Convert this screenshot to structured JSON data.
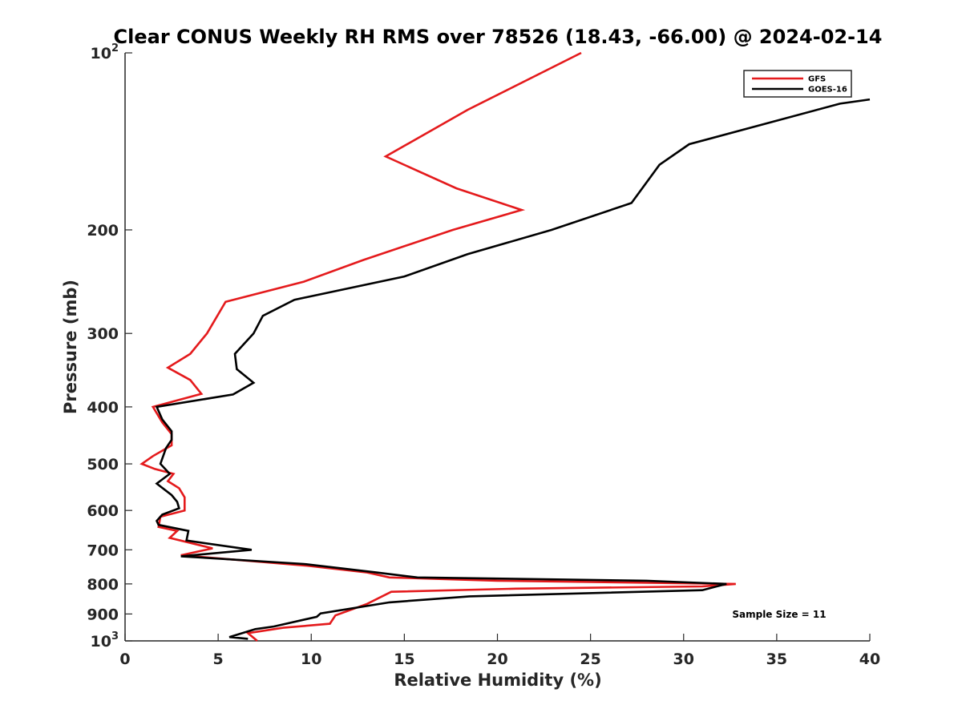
{
  "chart_data": {
    "type": "line",
    "title": "Clear CONUS Weekly RH RMS over 78526 (18.43, -66.00) @ 2024-02-14",
    "xlabel": "Relative Humidity (%)",
    "ylabel": "Pressure (mb)",
    "xlim": [
      0,
      40
    ],
    "ylim": [
      100,
      1000
    ],
    "y_scale": "log",
    "y_reversed": true,
    "x_ticks": [
      0,
      5,
      10,
      15,
      20,
      25,
      30,
      35,
      40
    ],
    "x_tick_labels": [
      "0",
      "5",
      "10",
      "15",
      "20",
      "25",
      "30",
      "35",
      "40"
    ],
    "y_ticks": [
      {
        "value": 100,
        "base": "10",
        "exp": "2"
      },
      {
        "value": 200,
        "base": "200",
        "exp": ""
      },
      {
        "value": 300,
        "base": "300",
        "exp": ""
      },
      {
        "value": 400,
        "base": "400",
        "exp": ""
      },
      {
        "value": 500,
        "base": "500",
        "exp": ""
      },
      {
        "value": 600,
        "base": "600",
        "exp": ""
      },
      {
        "value": 700,
        "base": "700",
        "exp": ""
      },
      {
        "value": 800,
        "base": "800",
        "exp": ""
      },
      {
        "value": 900,
        "base": "900",
        "exp": ""
      },
      {
        "value": 1000,
        "base": "10",
        "exp": "3"
      }
    ],
    "grid": false,
    "legend_position": "top-right",
    "annotation": "Sample Size = 11",
    "series": [
      {
        "name": "GFS",
        "color": "#e41a1c",
        "points": [
          [
            24.5,
            100
          ],
          [
            18.4,
            125
          ],
          [
            14.0,
            150
          ],
          [
            17.8,
            170
          ],
          [
            21.3,
            185
          ],
          [
            17.6,
            200
          ],
          [
            12.8,
            225
          ],
          [
            9.6,
            245
          ],
          [
            5.4,
            265
          ],
          [
            4.4,
            300
          ],
          [
            3.5,
            325
          ],
          [
            2.3,
            343
          ],
          [
            3.5,
            360
          ],
          [
            4.1,
            380
          ],
          [
            1.5,
            400
          ],
          [
            2.0,
            425
          ],
          [
            2.5,
            445
          ],
          [
            2.5,
            465
          ],
          [
            1.5,
            485
          ],
          [
            0.9,
            500
          ],
          [
            1.6,
            510
          ],
          [
            2.6,
            520
          ],
          [
            2.3,
            535
          ],
          [
            2.9,
            550
          ],
          [
            3.2,
            570
          ],
          [
            3.2,
            600
          ],
          [
            1.9,
            615
          ],
          [
            1.8,
            640
          ],
          [
            2.8,
            650
          ],
          [
            2.4,
            668
          ],
          [
            4.7,
            696
          ],
          [
            3.0,
            715
          ],
          [
            9.8,
            745
          ],
          [
            13.0,
            765
          ],
          [
            14.2,
            780
          ],
          [
            20.0,
            790
          ],
          [
            32.8,
            800
          ],
          [
            31.0,
            808
          ],
          [
            21.0,
            815
          ],
          [
            14.3,
            825
          ],
          [
            13.0,
            865
          ],
          [
            11.3,
            905
          ],
          [
            11.0,
            935
          ],
          [
            8.5,
            950
          ],
          [
            6.6,
            970
          ],
          [
            7.1,
            1000
          ]
        ]
      },
      {
        "name": "GOES-16",
        "color": "#000000",
        "points": [
          [
            40.0,
            120
          ],
          [
            38.4,
            122
          ],
          [
            30.3,
            143
          ],
          [
            28.7,
            155
          ],
          [
            27.2,
            180
          ],
          [
            22.9,
            200
          ],
          [
            18.4,
            220
          ],
          [
            15.0,
            240
          ],
          [
            9.1,
            263
          ],
          [
            7.4,
            280
          ],
          [
            6.9,
            300
          ],
          [
            5.9,
            325
          ],
          [
            6.0,
            345
          ],
          [
            6.9,
            364
          ],
          [
            5.8,
            381
          ],
          [
            1.7,
            400
          ],
          [
            2.0,
            420
          ],
          [
            2.5,
            440
          ],
          [
            2.5,
            455
          ],
          [
            2.2,
            470
          ],
          [
            1.9,
            500
          ],
          [
            2.4,
            520
          ],
          [
            1.7,
            540
          ],
          [
            2.5,
            565
          ],
          [
            2.8,
            580
          ],
          [
            2.9,
            595
          ],
          [
            2.0,
            610
          ],
          [
            1.7,
            625
          ],
          [
            1.8,
            635
          ],
          [
            3.4,
            650
          ],
          [
            3.3,
            675
          ],
          [
            6.8,
            700
          ],
          [
            3.0,
            718
          ],
          [
            9.6,
            740
          ],
          [
            13.5,
            765
          ],
          [
            15.7,
            780
          ],
          [
            28.0,
            790
          ],
          [
            32.3,
            800
          ],
          [
            31.0,
            820
          ],
          [
            18.5,
            840
          ],
          [
            14.2,
            860
          ],
          [
            10.5,
            898
          ],
          [
            10.3,
            910
          ],
          [
            8.0,
            945
          ],
          [
            7.0,
            955
          ],
          [
            5.6,
            985
          ],
          [
            6.6,
            992
          ]
        ]
      }
    ]
  }
}
